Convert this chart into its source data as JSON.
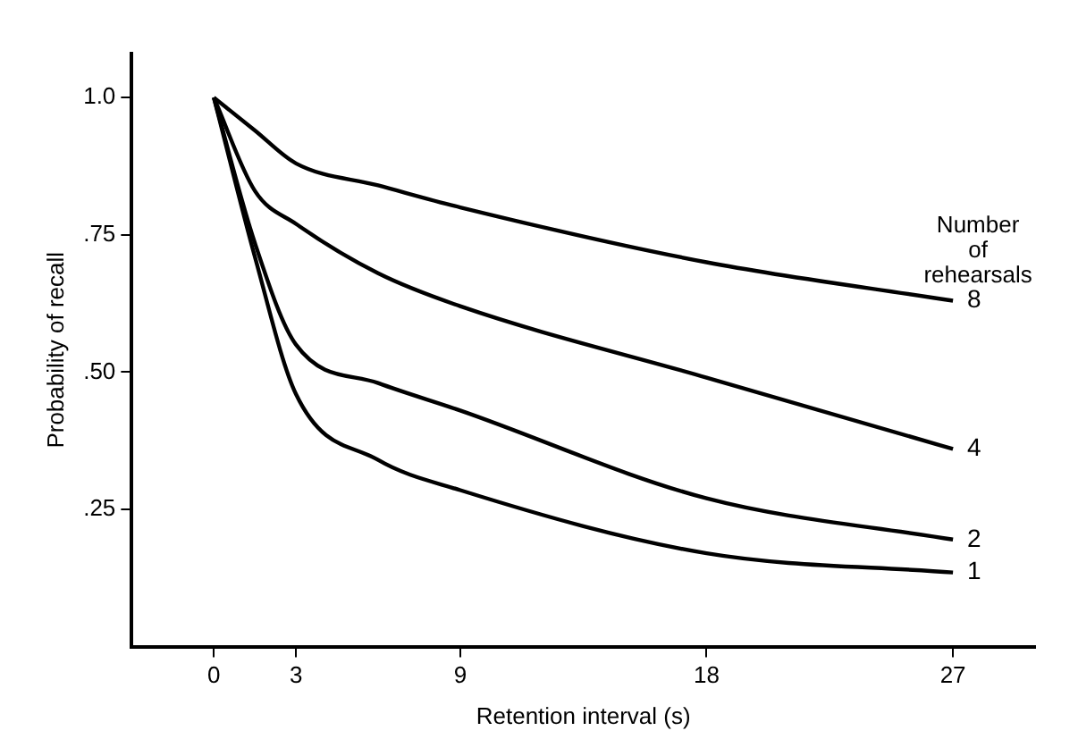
{
  "chart_data": {
    "type": "line",
    "xlabel": "Retention interval (s)",
    "ylabel": "Probability of recall",
    "legend_title": "Number\nof\nrehearsals",
    "x": [
      0,
      1.5,
      3,
      6,
      9,
      18,
      27
    ],
    "series": [
      {
        "name": "8",
        "color": "#000000",
        "values": [
          1.0,
          0.94,
          0.88,
          0.84,
          0.8,
          0.7,
          0.63
        ]
      },
      {
        "name": "4",
        "color": "#000000",
        "values": [
          1.0,
          0.83,
          0.77,
          0.68,
          0.62,
          0.49,
          0.36
        ]
      },
      {
        "name": "2",
        "color": "#000000",
        "values": [
          1.0,
          0.735,
          0.55,
          0.48,
          0.43,
          0.27,
          0.195
        ]
      },
      {
        "name": "1",
        "color": "#000000",
        "values": [
          1.0,
          0.71,
          0.46,
          0.34,
          0.285,
          0.17,
          0.135
        ]
      }
    ],
    "xlim": [
      -3,
      30
    ],
    "ylim": [
      0,
      1.08
    ],
    "xticks": [
      0,
      3,
      9,
      18,
      27
    ],
    "yticks": [
      {
        "value": 0.25,
        "label": ".25"
      },
      {
        "value": 0.5,
        "label": ".50"
      },
      {
        "value": 0.75,
        "label": ".75"
      },
      {
        "value": 1.0,
        "label": "1.0"
      }
    ],
    "grid": false,
    "legend": false,
    "marker": "none",
    "line_style": "solid"
  }
}
